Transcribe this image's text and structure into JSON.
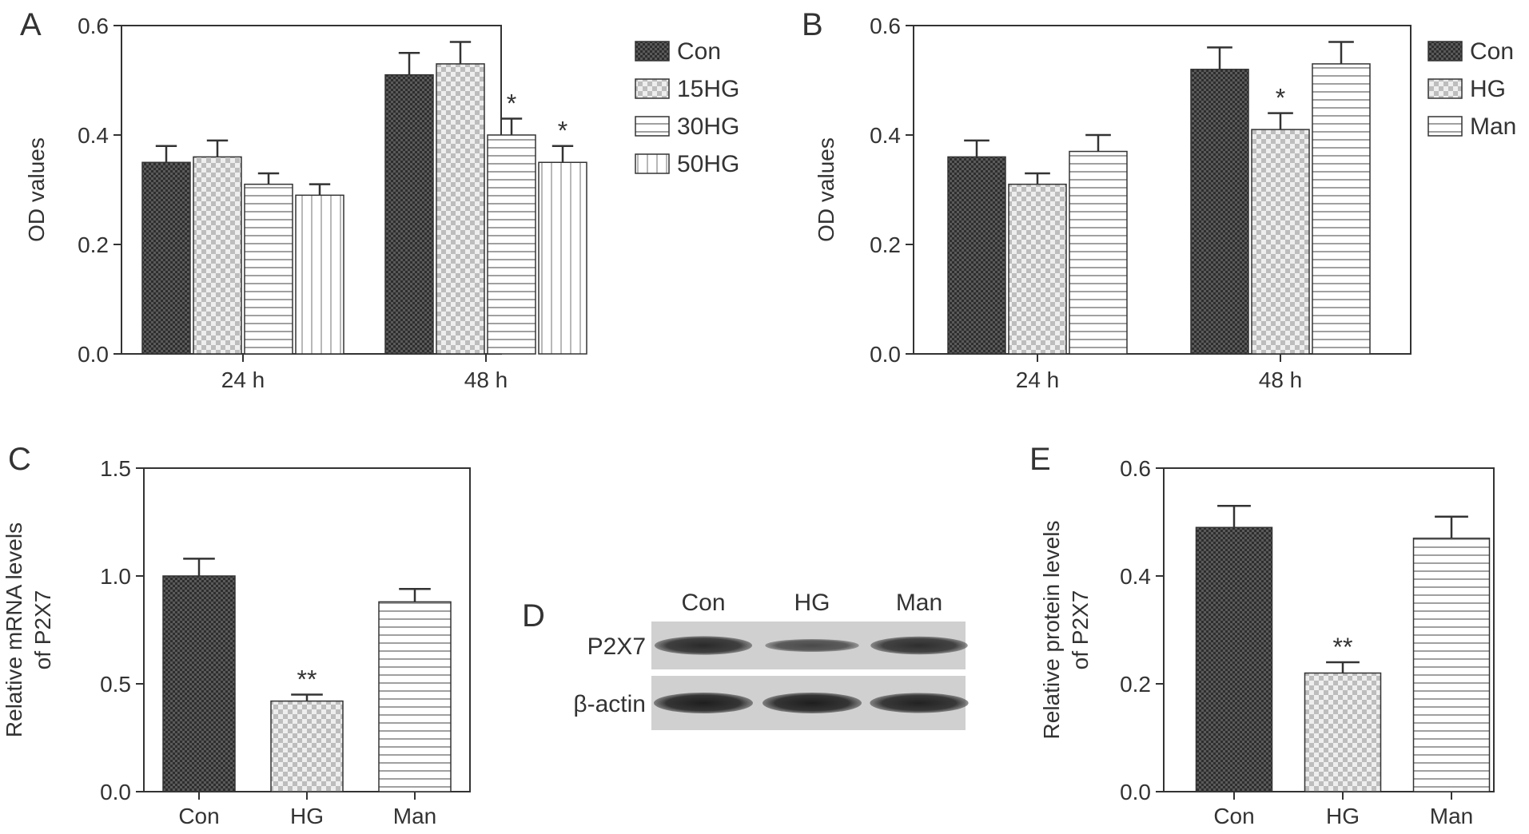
{
  "chart_data": [
    {
      "panel": "A",
      "type": "bar",
      "categories": [
        "24 h",
        "48 h"
      ],
      "series": [
        {
          "name": "Con",
          "pattern": "dark",
          "values": [
            0.35,
            0.51
          ],
          "errors": [
            0.03,
            0.04
          ],
          "sig": [
            "",
            ""
          ]
        },
        {
          "name": "15HG",
          "pattern": "check",
          "values": [
            0.36,
            0.53
          ],
          "errors": [
            0.03,
            0.04
          ],
          "sig": [
            "",
            ""
          ]
        },
        {
          "name": "30HG",
          "pattern": "hlines",
          "values": [
            0.31,
            0.4
          ],
          "errors": [
            0.02,
            0.03
          ],
          "sig": [
            "",
            "*"
          ]
        },
        {
          "name": "50HG",
          "pattern": "vlines",
          "values": [
            0.29,
            0.35
          ],
          "errors": [
            0.02,
            0.03
          ],
          "sig": [
            "",
            "*"
          ]
        }
      ],
      "ylabel": "OD values",
      "ylim": [
        0,
        0.6
      ],
      "yticks": [
        "0.0",
        "0.2",
        "0.4",
        "0.6"
      ],
      "legend": "right"
    },
    {
      "panel": "B",
      "type": "bar",
      "categories": [
        "24 h",
        "48 h"
      ],
      "series": [
        {
          "name": "Con",
          "pattern": "dark",
          "values": [
            0.36,
            0.52
          ],
          "errors": [
            0.03,
            0.04
          ],
          "sig": [
            "",
            ""
          ]
        },
        {
          "name": "HG",
          "pattern": "check",
          "values": [
            0.31,
            0.41
          ],
          "errors": [
            0.02,
            0.03
          ],
          "sig": [
            "",
            "*"
          ]
        },
        {
          "name": "Man",
          "pattern": "hlines",
          "values": [
            0.37,
            0.53
          ],
          "errors": [
            0.03,
            0.04
          ],
          "sig": [
            "",
            ""
          ]
        }
      ],
      "ylabel": "OD values",
      "ylim": [
        0,
        0.6
      ],
      "yticks": [
        "0.0",
        "0.2",
        "0.4",
        "0.6"
      ],
      "legend": "right"
    },
    {
      "panel": "C",
      "type": "bar",
      "categories": [
        "Con",
        "HG",
        "Man"
      ],
      "patterns": [
        "dark",
        "check",
        "hlines"
      ],
      "values": [
        1.0,
        0.42,
        0.88
      ],
      "errors": [
        0.08,
        0.03,
        0.06
      ],
      "sig": [
        "",
        "**",
        ""
      ],
      "ylabel": [
        "Relative mRNA levels",
        "of P2X7"
      ],
      "ylim": [
        0,
        1.5
      ],
      "yticks": [
        "0.0",
        "0.5",
        "1.0",
        "1.5"
      ]
    },
    {
      "panel": "E",
      "type": "bar",
      "categories": [
        "Con",
        "HG",
        "Man"
      ],
      "patterns": [
        "dark",
        "check",
        "hlines"
      ],
      "values": [
        0.49,
        0.22,
        0.47
      ],
      "errors": [
        0.04,
        0.02,
        0.04
      ],
      "sig": [
        "",
        "**",
        ""
      ],
      "ylabel": [
        "Relative protein levels",
        "of P2X7"
      ],
      "ylim": [
        0,
        0.6
      ],
      "yticks": [
        "0.0",
        "0.2",
        "0.4",
        "0.6"
      ]
    }
  ],
  "blot": {
    "panel": "D",
    "columns": [
      "Con",
      "HG",
      "Man"
    ],
    "rows": [
      {
        "label": "P2X7",
        "intensity": [
          0.85,
          0.45,
          0.8
        ]
      },
      {
        "label": "β-actin",
        "intensity": [
          1.0,
          1.0,
          0.95
        ]
      }
    ]
  },
  "colors": {
    "ink": "#333333",
    "dark_fill": "#555555",
    "blot_bg": "#d0d0d0",
    "band": "#2a2a2a"
  }
}
